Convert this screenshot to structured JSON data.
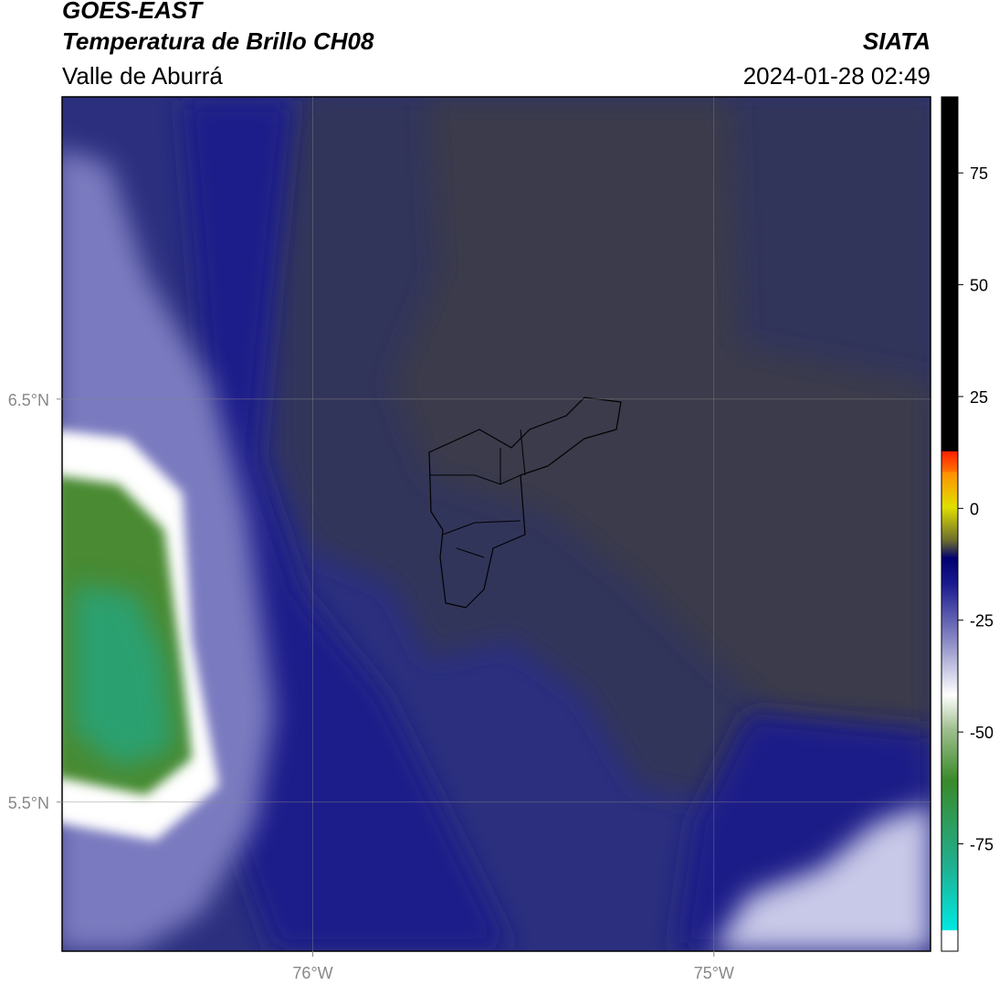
{
  "header": {
    "title": "GOES-EAST",
    "subtitle": "Temperatura de Brillo CH08",
    "region": "Valle de Aburrá",
    "source": "SIATA",
    "datetime": "2024-01-28 02:49"
  },
  "map": {
    "xlim": [
      -76.625,
      -74.46
    ],
    "ylim": [
      5.13,
      7.25
    ],
    "xticks": [
      {
        "value": -76,
        "label": "76°W"
      },
      {
        "value": -75,
        "label": "75°W"
      }
    ],
    "yticks": [
      {
        "value": 6.5,
        "label": "6.5°N"
      },
      {
        "value": 5.5,
        "label": "5.5°N"
      }
    ]
  },
  "colorbar": {
    "lim": [
      -99,
      92
    ],
    "ticks": [
      75,
      50,
      25,
      0,
      -25,
      -50,
      -75
    ]
  }
}
